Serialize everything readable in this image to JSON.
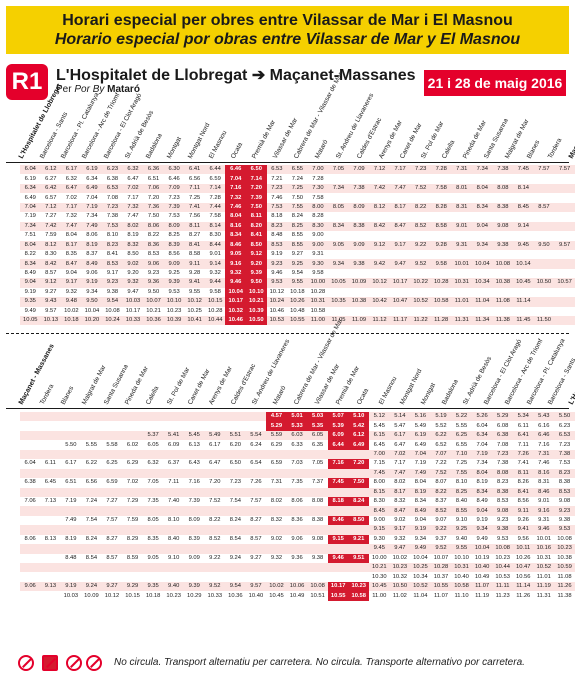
{
  "banner": {
    "line1": "Horari especial per obres entre Vilassar de Mar i El Masnou",
    "line2": "Horario especial por obras entre Vilassar de Mar y El Masnou"
  },
  "route": {
    "badge": "R1",
    "title": "L'Hospitalet de Llobregat ➔ Maçanet-Massanes",
    "via_label": "Per ",
    "via_italic": "Por ",
    "via_italic2": "By ",
    "via_place": "Mataró"
  },
  "date_badge": "21 i 28 de maig 2016",
  "colors": {
    "brand_red": "#e4002b",
    "highlight_red": "#d41a2f",
    "banner_yellow": "#f5d000",
    "row_pink": "#fbe3e1"
  },
  "top": {
    "stations": [
      "L'Hospitalet de Llobregat",
      "Barcelona - Sants",
      "Barcelona - Pl. Catalunya",
      "Barcelona - Arc de Triomf",
      "Barcelona - El Clot Aragó",
      "St. Adrià de Besòs",
      "Badalona",
      "Montgat",
      "Montgat Nord",
      "El Masnou",
      "Ocata",
      "Premià de Mar",
      "Vilassar de Mar",
      "Cabrera de Mar - Vilassar de Mar",
      "Mataró",
      "St. Andreu de Llavaneres",
      "Caldes d'Estrac",
      "Arenys de Mar",
      "Canet de Mar",
      "St. Pol de Mar",
      "Calella",
      "Pineda de Mar",
      "Santa Susanna",
      "Malgrat de Mar",
      "Blanes",
      "Tordera",
      "Maçanet - Massanes"
    ],
    "rows": [
      [
        "6.04",
        "6.12",
        "6.17",
        "6.19",
        "6.23",
        "6.32",
        "6.36",
        "6.30",
        "6.41",
        "6.44",
        "6.46",
        "6.50",
        "6.53",
        "6.55",
        "7.00",
        "7.05",
        "7.09",
        "7.12",
        "7.17",
        "7.23",
        "7.28",
        "7.31",
        "7.34",
        "7.38",
        "7.45",
        "7.57",
        "7.57"
      ],
      [
        "6.19",
        "6.27",
        "6.32",
        "6.34",
        "6.38",
        "6.47",
        "6.51",
        "6.46",
        "6.56",
        "6.59",
        "7.04",
        "7.14",
        "7.21",
        "7.24",
        "7.28",
        "",
        "",
        "",
        "",
        "",
        "",
        "",
        "",
        "",
        "",
        "",
        ""
      ],
      [
        "6.34",
        "6.42",
        "6.47",
        "6.49",
        "6.53",
        "7.02",
        "7.06",
        "7.09",
        "7.11",
        "7.14",
        "7.16",
        "7.20",
        "7.23",
        "7.25",
        "7.30",
        "7.34",
        "7.38",
        "7.42",
        "7.47",
        "7.52",
        "7.58",
        "8.01",
        "8.04",
        "8.08",
        "8.14",
        "",
        ""
      ],
      [
        "6.49",
        "6.57",
        "7.02",
        "7.04",
        "7.08",
        "7.17",
        "7.20",
        "7.23",
        "7.25",
        "7.28",
        "7.32",
        "7.39",
        "7.46",
        "7.50",
        "7.58",
        "",
        "",
        "",
        "",
        "",
        "",
        "",
        "",
        "",
        "",
        "",
        ""
      ],
      [
        "7.04",
        "7.12",
        "7.17",
        "7.19",
        "7.23",
        "7.32",
        "7.36",
        "7.39",
        "7.41",
        "7.44",
        "7.46",
        "7.50",
        "7.53",
        "7.55",
        "8.00",
        "8.05",
        "8.09",
        "8.12",
        "8.17",
        "8.22",
        "8.28",
        "8.31",
        "8.34",
        "8.38",
        "8.45",
        "8.57",
        ""
      ],
      [
        "7.19",
        "7.27",
        "7.32",
        "7.34",
        "7.38",
        "7.47",
        "7.50",
        "7.53",
        "7.56",
        "7.58",
        "8.04",
        "8.11",
        "8.18",
        "8.24",
        "8.28",
        "",
        "",
        "",
        "",
        "",
        "",
        "",
        "",
        "",
        "",
        "",
        ""
      ],
      [
        "7.34",
        "7.42",
        "7.47",
        "7.49",
        "7.53",
        "8.02",
        "8.06",
        "8.09",
        "8.11",
        "8.14",
        "8.16",
        "8.20",
        "8.23",
        "8.25",
        "8.30",
        "8.34",
        "8.38",
        "8.42",
        "8.47",
        "8.52",
        "8.58",
        "9.01",
        "9.04",
        "9.08",
        "9.14",
        "",
        ""
      ],
      [
        "7.51",
        "7.59",
        "8.04",
        "8.06",
        "8.10",
        "8.19",
        "8.22",
        "8.25",
        "8.27",
        "8.30",
        "8.34",
        "8.41",
        "8.48",
        "8.55",
        "9.00",
        "",
        "",
        "",
        "",
        "",
        "",
        "",
        "",
        "",
        "",
        "",
        ""
      ],
      [
        "8.04",
        "8.12",
        "8.17",
        "8.19",
        "8.23",
        "8.32",
        "8.36",
        "8.39",
        "8.41",
        "8.44",
        "8.46",
        "8.50",
        "8.53",
        "8.55",
        "9.00",
        "9.05",
        "9.09",
        "9.12",
        "9.17",
        "9.22",
        "9.28",
        "9.31",
        "9.34",
        "9.38",
        "9.45",
        "9.50",
        "9.57"
      ],
      [
        "8.22",
        "8.30",
        "8.35",
        "8.37",
        "8.41",
        "8.50",
        "8.53",
        "8.56",
        "8.58",
        "9.01",
        "9.05",
        "9.12",
        "9.19",
        "9.27",
        "9.31",
        "",
        "",
        "",
        "",
        "",
        "",
        "",
        "",
        "",
        "",
        "",
        ""
      ],
      [
        "8.34",
        "8.42",
        "8.47",
        "8.49",
        "8.53",
        "9.02",
        "9.06",
        "9.09",
        "9.11",
        "9.14",
        "9.16",
        "9.20",
        "9.23",
        "9.25",
        "9.30",
        "9.34",
        "9.38",
        "9.42",
        "9.47",
        "9.52",
        "9.58",
        "10.01",
        "10.04",
        "10.08",
        "10.14",
        "",
        ""
      ],
      [
        "8.49",
        "8.57",
        "9.04",
        "9.06",
        "9.17",
        "9.20",
        "9.23",
        "9.25",
        "9.28",
        "9.32",
        "9.32",
        "9.39",
        "9.46",
        "9.54",
        "9.58",
        "",
        "",
        "",
        "",
        "",
        "",
        "",
        "",
        "",
        "",
        "",
        ""
      ],
      [
        "9.04",
        "9.12",
        "9.17",
        "9.19",
        "9.23",
        "9.32",
        "9.36",
        "9.39",
        "9.41",
        "9.44",
        "9.46",
        "9.50",
        "9.53",
        "9.55",
        "10.00",
        "10.05",
        "10.09",
        "10.12",
        "10.17",
        "10.22",
        "10.28",
        "10.31",
        "10.34",
        "10.38",
        "10.45",
        "10.50",
        "10.57"
      ],
      [
        "9.19",
        "9.27",
        "9.32",
        "9.34",
        "9.38",
        "9.47",
        "9.50",
        "9.53",
        "9.55",
        "9.58",
        "10.04",
        "10.10",
        "10.12",
        "10.18",
        "10.28",
        "",
        "",
        "",
        "",
        "",
        "",
        "",
        "",
        "",
        "",
        "",
        ""
      ],
      [
        "9.35",
        "9.43",
        "9.48",
        "9.50",
        "9.54",
        "10.03",
        "10.07",
        "10.10",
        "10.12",
        "10.15",
        "10.17",
        "10.21",
        "10.24",
        "10.26",
        "10.31",
        "10.35",
        "10.38",
        "10.42",
        "10.47",
        "10.52",
        "10.58",
        "11.01",
        "11.04",
        "11.08",
        "11.14",
        "",
        ""
      ],
      [
        "9.49",
        "9.57",
        "10.02",
        "10.04",
        "10.08",
        "10.17",
        "10.21",
        "10.23",
        "10.25",
        "10.28",
        "10.32",
        "10.39",
        "10.46",
        "10.48",
        "10.58",
        "",
        "",
        "",
        "",
        "",
        "",
        "",
        "",
        "",
        "",
        "",
        ""
      ],
      [
        "10.05",
        "10.13",
        "10.18",
        "10.20",
        "10.24",
        "10.33",
        "10.36",
        "10.39",
        "10.41",
        "10.44",
        "10.46",
        "10.50",
        "10.53",
        "10.55",
        "11.00",
        "11.05",
        "11.09",
        "11.12",
        "11.17",
        "11.22",
        "11.28",
        "11.31",
        "11.34",
        "11.38",
        "11.45",
        "11.50",
        ""
      ]
    ],
    "highlight_cols": [
      10,
      11
    ]
  },
  "bottom": {
    "stations": [
      "Maçanet - Massanes",
      "Tordera",
      "Blanes",
      "Malgrat de Mar",
      "Santa Susanna",
      "Pineda de Mar",
      "Calella",
      "St. Pol de Mar",
      "Canet de Mar",
      "Arenys de Mar",
      "Caldes d'Estrac",
      "St. Andreu de Llavaneres",
      "Mataró",
      "Cabrera de Mar - Vilassar de Mar",
      "Vilassar de Mar",
      "Premià de Mar",
      "Ocata",
      "El Masnou",
      "Montgat Nord",
      "Montgat",
      "Badalona",
      "St. Adrià de Besòs",
      "Barcelona - El Clot Aragó",
      "Barcelona - Arc de Triomf",
      "Barcelona - Pl. Catalunya",
      "Barcelona - Sants",
      "L'Hospitalet de Llobregat"
    ],
    "rows": [
      [
        "",
        "",
        "",
        "",
        "",
        "",
        "",
        "",
        "",
        "",
        "",
        "",
        "4.57",
        "5.01",
        "5.03",
        "5.07",
        "5.10",
        "5.12",
        "5.14",
        "5.16",
        "5.19",
        "5.22",
        "5.26",
        "5.29",
        "5.34",
        "5.43",
        "5.50"
      ],
      [
        "",
        "",
        "",
        "",
        "",
        "",
        "",
        "",
        "",
        "",
        "",
        "",
        "5.29",
        "5.33",
        "5.35",
        "5.39",
        "5.42",
        "5.45",
        "5.47",
        "5.49",
        "5.52",
        "5.55",
        "6.04",
        "6.08",
        "6.11",
        "6.16",
        "6.23"
      ],
      [
        "",
        "",
        "",
        "",
        "",
        "",
        "5.37",
        "5.41",
        "5.45",
        "5.49",
        "5.51",
        "5.54",
        "5.59",
        "6.03",
        "6.05",
        "6.09",
        "6.12",
        "6.15",
        "6.17",
        "6.19",
        "6.22",
        "6.25",
        "6.34",
        "6.38",
        "6.41",
        "6.46",
        "6.53"
      ],
      [
        "",
        "",
        "5.50",
        "5.55",
        "5.58",
        "6.02",
        "6.05",
        "6.09",
        "6.13",
        "6.17",
        "6.20",
        "6.24",
        "6.29",
        "6.33",
        "6.35",
        "6.44",
        "6.49",
        "6.45",
        "6.47",
        "6.49",
        "6.52",
        "6.55",
        "7.04",
        "7.08",
        "7.11",
        "7.16",
        "7.23"
      ],
      [
        "",
        "",
        "",
        "",
        "",
        "",
        "",
        "",
        "",
        "",
        "",
        "",
        "",
        "",
        "",
        "",
        "",
        "7.00",
        "7.02",
        "7.04",
        "7.07",
        "7.10",
        "7.19",
        "7.23",
        "7.26",
        "7.31",
        "7.38"
      ],
      [
        "6.04",
        "6.11",
        "6.17",
        "6.22",
        "6.25",
        "6.29",
        "6.32",
        "6.37",
        "6.43",
        "6.47",
        "6.50",
        "6.54",
        "6.59",
        "7.03",
        "7.05",
        "7.16",
        "7.20",
        "7.15",
        "7.17",
        "7.19",
        "7.22",
        "7.25",
        "7.34",
        "7.38",
        "7.41",
        "7.46",
        "7.53"
      ],
      [
        "",
        "",
        "",
        "",
        "",
        "",
        "",
        "",
        "",
        "",
        "",
        "",
        "",
        "",
        "",
        "",
        "",
        "7.45",
        "7.47",
        "7.49",
        "7.52",
        "7.55",
        "8.04",
        "8.08",
        "8.11",
        "8.16",
        "8.23"
      ],
      [
        "6.38",
        "6.45",
        "6.51",
        "6.56",
        "6.59",
        "7.02",
        "7.05",
        "7.11",
        "7.16",
        "7.20",
        "7.23",
        "7.26",
        "7.31",
        "7.35",
        "7.37",
        "7.45",
        "7.50",
        "8.00",
        "8.02",
        "8.04",
        "8.07",
        "8.10",
        "8.19",
        "8.23",
        "8.26",
        "8.31",
        "8.38"
      ],
      [
        "",
        "",
        "",
        "",
        "",
        "",
        "",
        "",
        "",
        "",
        "",
        "",
        "",
        "",
        "",
        "",
        "",
        "8.15",
        "8.17",
        "8.19",
        "8.22",
        "8.25",
        "8.34",
        "8.38",
        "8.41",
        "8.46",
        "8.53"
      ],
      [
        "7.06",
        "7.13",
        "7.19",
        "7.24",
        "7.27",
        "7.29",
        "7.35",
        "7.40",
        "7.39",
        "7.52",
        "7.54",
        "7.57",
        "8.02",
        "8.06",
        "8.08",
        "8.18",
        "8.24",
        "8.30",
        "8.32",
        "8.34",
        "8.37",
        "8.40",
        "8.49",
        "8.53",
        "8.56",
        "9.01",
        "9.08"
      ],
      [
        "",
        "",
        "",
        "",
        "",
        "",
        "",
        "",
        "",
        "",
        "",
        "",
        "",
        "",
        "",
        "",
        "",
        "8.45",
        "8.47",
        "8.49",
        "8.52",
        "8.55",
        "9.04",
        "9.08",
        "9.11",
        "9.16",
        "9.23"
      ],
      [
        "",
        "",
        "7.49",
        "7.54",
        "7.57",
        "7.59",
        "8.05",
        "8.10",
        "8.09",
        "8.22",
        "8.24",
        "8.27",
        "8.32",
        "8.36",
        "8.38",
        "8.46",
        "8.50",
        "9.00",
        "9.02",
        "9.04",
        "9.07",
        "9.10",
        "9.19",
        "9.23",
        "9.26",
        "9.31",
        "9.38"
      ],
      [
        "",
        "",
        "",
        "",
        "",
        "",
        "",
        "",
        "",
        "",
        "",
        "",
        "",
        "",
        "",
        "",
        "",
        "9.15",
        "9.17",
        "9.19",
        "9.22",
        "9.25",
        "9.34",
        "9.38",
        "9.41",
        "9.46",
        "9.53"
      ],
      [
        "8.06",
        "8.13",
        "8.19",
        "8.24",
        "8.27",
        "8.29",
        "8.35",
        "8.40",
        "8.39",
        "8.52",
        "8.54",
        "8.57",
        "9.02",
        "9.06",
        "9.08",
        "9.15",
        "9.21",
        "9.30",
        "9.32",
        "9.34",
        "9.37",
        "9.40",
        "9.49",
        "9.53",
        "9.56",
        "10.01",
        "10.08"
      ],
      [
        "",
        "",
        "",
        "",
        "",
        "",
        "",
        "",
        "",
        "",
        "",
        "",
        "",
        "",
        "",
        "",
        "",
        "9.45",
        "9.47",
        "9.49",
        "9.52",
        "9.55",
        "10.04",
        "10.08",
        "10.11",
        "10.16",
        "10.23"
      ],
      [
        "",
        "",
        "8.48",
        "8.54",
        "8.57",
        "8.59",
        "9.05",
        "9.10",
        "9.09",
        "9.22",
        "9.24",
        "9.27",
        "9.32",
        "9.36",
        "9.38",
        "9.46",
        "9.51",
        "10.00",
        "10.02",
        "10.04",
        "10.07",
        "10.10",
        "10.19",
        "10.23",
        "10.26",
        "10.31",
        "10.38"
      ],
      [
        "",
        "",
        "",
        "",
        "",
        "",
        "",
        "",
        "",
        "",
        "",
        "",
        "",
        "",
        "",
        "",
        "",
        "10.21",
        "10.23",
        "10.25",
        "10.28",
        "10.31",
        "10.40",
        "10.44",
        "10.47",
        "10.52",
        "10.59"
      ],
      [
        "",
        "",
        "",
        "",
        "",
        "",
        "",
        "",
        "",
        "",
        "",
        "",
        "",
        "",
        "",
        "",
        "",
        "10.30",
        "10.32",
        "10.34",
        "10.37",
        "10.40",
        "10.49",
        "10.53",
        "10.56",
        "11.01",
        "11.08"
      ],
      [
        "9.06",
        "9.13",
        "9.19",
        "9.24",
        "9.27",
        "9.29",
        "9.35",
        "9.40",
        "9.39",
        "9.52",
        "9.54",
        "9.57",
        "10.02",
        "10.06",
        "10.08",
        "10.17",
        "10.23",
        "10.45",
        "10.50",
        "10.52",
        "10.55",
        "10.58",
        "11.07",
        "11.11",
        "11.14",
        "11.19",
        "11.26"
      ],
      [
        "",
        "",
        "10.03",
        "10.09",
        "10.12",
        "10.15",
        "10.18",
        "10.23",
        "10.29",
        "10.33",
        "10.36",
        "10.40",
        "10.45",
        "10.49",
        "10.51",
        "10.55",
        "10.58",
        "11.00",
        "11.02",
        "11.04",
        "11.07",
        "11.10",
        "11.19",
        "11.23",
        "11.26",
        "11.31",
        "11.38"
      ]
    ],
    "highlight_cols": [
      15,
      16
    ],
    "highlight_rows_top_cols": [
      12,
      13,
      14,
      15,
      16
    ],
    "highlight_rows_top": [
      0,
      1
    ]
  },
  "footer": {
    "text": "No circula. Transport alternatiu per carretera. No circula. Transporte alternativo por carretera."
  }
}
